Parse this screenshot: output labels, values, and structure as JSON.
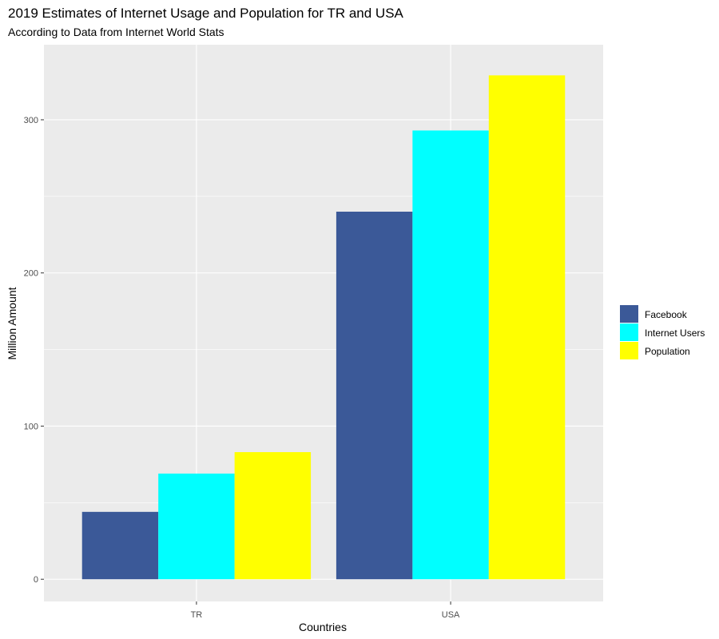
{
  "chart_data": {
    "type": "bar",
    "title": "2019 Estimates of Internet Usage and Population for TR and USA",
    "subtitle": "According to Data from Internet World Stats",
    "xlabel": "Countries",
    "ylabel": "Million Amount",
    "categories": [
      "TR",
      "USA"
    ],
    "series": [
      {
        "name": "Facebook",
        "values": [
          44,
          240
        ],
        "color": "#3b5998"
      },
      {
        "name": "Internet Users",
        "values": [
          69,
          293
        ],
        "color": "#00ffff"
      },
      {
        "name": "Population",
        "values": [
          83,
          329
        ],
        "color": "#ffff00"
      }
    ],
    "ylim": [
      -14.5,
      349
    ],
    "yticks": [
      0,
      100,
      200,
      300
    ],
    "ytick_labels": [
      "0",
      "100",
      "200",
      "300"
    ],
    "grid": true,
    "legend_position": "right",
    "panel_background": "#ebebeb"
  }
}
